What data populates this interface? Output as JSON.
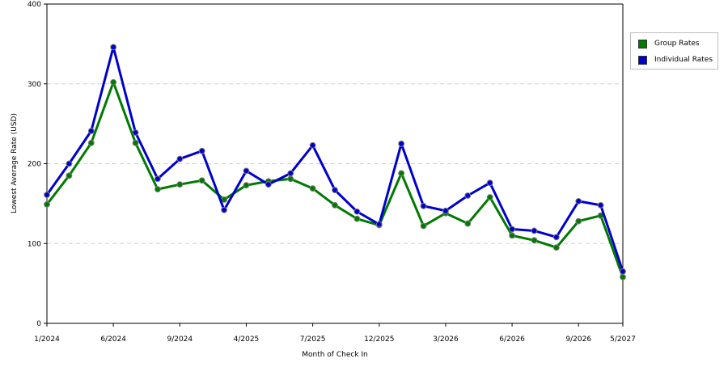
{
  "chart_data": {
    "type": "line",
    "xlabel": "Month of Check In",
    "ylabel": "Lowest Average Rate (USD)",
    "ylim": [
      0,
      400
    ],
    "yticks": [
      0,
      100,
      200,
      300,
      400
    ],
    "y_grid": true,
    "legend_position": "right",
    "x_tick_labels": [
      "1/2024",
      "6/2024",
      "9/2024",
      "4/2025",
      "7/2025",
      "12/2025",
      "3/2026",
      "6/2026",
      "9/2026",
      "5/2027"
    ],
    "x_tick_index": [
      0,
      3,
      6,
      9,
      12,
      15,
      18,
      21,
      24,
      26
    ],
    "series": [
      {
        "name": "Group Rates",
        "color": "#007a00",
        "values": [
          149,
          185,
          226,
          302,
          226,
          168,
          174,
          179,
          155,
          173,
          178,
          181,
          169,
          148,
          131,
          123,
          188,
          122,
          138,
          125,
          158,
          110,
          104,
          95,
          128,
          135,
          58
        ]
      },
      {
        "name": "Individual Rates",
        "color": "#0000cc",
        "values": [
          161,
          200,
          241,
          346,
          239,
          181,
          206,
          216,
          142,
          191,
          174,
          188,
          223,
          167,
          140,
          124,
          225,
          147,
          141,
          160,
          176,
          118,
          116,
          108,
          153,
          148,
          65
        ]
      }
    ]
  }
}
